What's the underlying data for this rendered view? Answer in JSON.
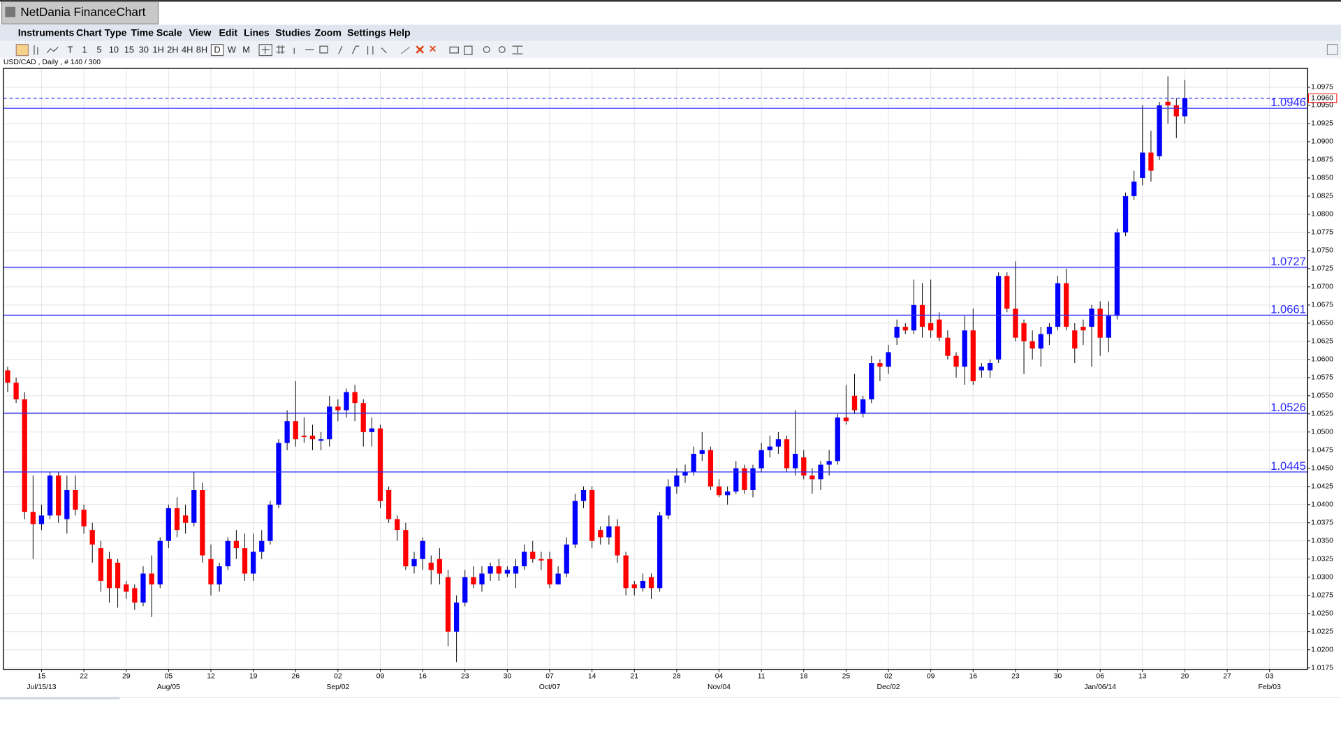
{
  "window_title": "NetDania FinanceChart",
  "menu": [
    "Instruments",
    "Chart Type",
    "Time Scale",
    "View",
    "Edit",
    "Lines",
    "Studies",
    "Zoom",
    "Settings",
    "Help"
  ],
  "toolbar": {
    "timeframes": [
      "T",
      "1",
      "5",
      "10",
      "15",
      "30",
      "1H",
      "2H",
      "4H",
      "8H",
      "D",
      "W",
      "M"
    ],
    "selected": "D"
  },
  "chart_data": {
    "type": "candlestick",
    "subtitle": "USD/CAD , Daily , # 140 / 300",
    "up_color": "#0000ff",
    "down_color": "#ff0000",
    "grid": true,
    "x": [
      "2013-07-09",
      "2013-07-10",
      "2013-07-11",
      "2013-07-12",
      "2013-07-15",
      "2013-07-16",
      "2013-07-17",
      "2013-07-18",
      "2013-07-19",
      "2013-07-22",
      "2013-07-23",
      "2013-07-24",
      "2013-07-25",
      "2013-07-26",
      "2013-07-29",
      "2013-07-30",
      "2013-07-31",
      "2013-08-01",
      "2013-08-02",
      "2013-08-05",
      "2013-08-06",
      "2013-08-07",
      "2013-08-08",
      "2013-08-09",
      "2013-08-12",
      "2013-08-13",
      "2013-08-14",
      "2013-08-15",
      "2013-08-16",
      "2013-08-19",
      "2013-08-20",
      "2013-08-21",
      "2013-08-22",
      "2013-08-23",
      "2013-08-26",
      "2013-08-27",
      "2013-08-28",
      "2013-08-29",
      "2013-08-30",
      "2013-09-02",
      "2013-09-03",
      "2013-09-04",
      "2013-09-05",
      "2013-09-06",
      "2013-09-09",
      "2013-09-10",
      "2013-09-11",
      "2013-09-12",
      "2013-09-13",
      "2013-09-16",
      "2013-09-17",
      "2013-09-18",
      "2013-09-19",
      "2013-09-20",
      "2013-09-23",
      "2013-09-24",
      "2013-09-25",
      "2013-09-26",
      "2013-09-27",
      "2013-09-30",
      "2013-10-01",
      "2013-10-02",
      "2013-10-03",
      "2013-10-04",
      "2013-10-07",
      "2013-10-08",
      "2013-10-09",
      "2013-10-10",
      "2013-10-11",
      "2013-10-14",
      "2013-10-15",
      "2013-10-16",
      "2013-10-17",
      "2013-10-18",
      "2013-10-21",
      "2013-10-22",
      "2013-10-23",
      "2013-10-24",
      "2013-10-25",
      "2013-10-28",
      "2013-10-29",
      "2013-10-30",
      "2013-10-31",
      "2013-11-01",
      "2013-11-04",
      "2013-11-05",
      "2013-11-06",
      "2013-11-07",
      "2013-11-08",
      "2013-11-11",
      "2013-11-12",
      "2013-11-13",
      "2013-11-14",
      "2013-11-15",
      "2013-11-18",
      "2013-11-19",
      "2013-11-20",
      "2013-11-21",
      "2013-11-22",
      "2013-11-25",
      "2013-11-26",
      "2013-11-27",
      "2013-11-28",
      "2013-11-29",
      "2013-12-02",
      "2013-12-03",
      "2013-12-04",
      "2013-12-05",
      "2013-12-06",
      "2013-12-09",
      "2013-12-10",
      "2013-12-11",
      "2013-12-12",
      "2013-12-13",
      "2013-12-16",
      "2013-12-17",
      "2013-12-18",
      "2013-12-19",
      "2013-12-20",
      "2013-12-23",
      "2013-12-24",
      "2013-12-25",
      "2013-12-26",
      "2013-12-27",
      "2013-12-30",
      "2013-12-31",
      "2014-01-01",
      "2014-01-02",
      "2014-01-03",
      "2014-01-06",
      "2014-01-07",
      "2014-01-08",
      "2014-01-09",
      "2014-01-10",
      "2014-01-13",
      "2014-01-14",
      "2014-01-15",
      "2014-01-16",
      "2014-01-17",
      "2014-01-20"
    ],
    "open": [
      1.0585,
      1.0568,
      1.0545,
      1.039,
      1.0373,
      1.0385,
      1.044,
      1.038,
      1.042,
      1.0393,
      1.0365,
      1.034,
      1.0325,
      1.032,
      1.029,
      1.0285,
      1.0265,
      1.0305,
      1.029,
      1.035,
      1.0395,
      1.0385,
      1.0375,
      1.042,
      1.0325,
      1.029,
      1.0315,
      1.035,
      1.034,
      1.0305,
      1.0335,
      1.035,
      1.04,
      1.0485,
      1.0515,
      1.0495,
      1.0495,
      1.0488,
      1.049,
      1.0535,
      1.053,
      1.0555,
      1.054,
      1.05,
      1.0505,
      1.042,
      1.038,
      1.0365,
      1.0315,
      1.0325,
      1.032,
      1.0325,
      1.03,
      1.0225,
      1.0265,
      1.03,
      1.029,
      1.0305,
      1.0315,
      1.0305,
      1.0305,
      1.0315,
      1.0335,
      1.0325,
      1.0325,
      1.029,
      1.0305,
      1.0345,
      1.0405,
      1.042,
      1.0365,
      1.0355,
      1.037,
      1.033,
      1.029,
      1.0285,
      1.03,
      1.0285,
      1.0385,
      1.0425,
      1.044,
      1.0445,
      1.047,
      1.0475,
      1.0425,
      1.0413,
      1.0418,
      1.045,
      1.042,
      1.045,
      1.0475,
      1.048,
      1.049,
      1.045,
      1.0465,
      1.044,
      1.0435,
      1.0455,
      1.046,
      1.052,
      1.055,
      1.0525,
      1.0545,
      1.0595,
      1.059,
      1.063,
      1.0645,
      1.064,
      1.0675,
      1.065,
      1.0655,
      1.063,
      1.0605,
      1.059,
      1.064,
      1.0585,
      1.0585,
      1.06,
      1.0715,
      1.067,
      1.065,
      1.0625,
      1.0615,
      1.0635,
      1.0645,
      1.0705,
      1.064,
      1.0645,
      1.0645,
      1.067,
      1.063,
      1.066,
      1.0775,
      1.0825,
      1.085,
      1.0885,
      1.088,
      1.0955,
      1.095,
      1.0935
    ],
    "high": [
      1.059,
      1.0575,
      1.0555,
      1.044,
      1.04,
      1.0445,
      1.0445,
      1.044,
      1.044,
      1.04,
      1.0375,
      1.035,
      1.0335,
      1.0325,
      1.0295,
      1.029,
      1.0315,
      1.033,
      1.0355,
      1.04,
      1.041,
      1.04,
      1.0445,
      1.043,
      1.0345,
      1.032,
      1.0355,
      1.0365,
      1.036,
      1.036,
      1.0365,
      1.0405,
      1.049,
      1.053,
      1.057,
      1.052,
      1.051,
      1.05,
      1.055,
      1.0545,
      1.056,
      1.0565,
      1.0545,
      1.052,
      1.051,
      1.0425,
      1.0385,
      1.0375,
      1.0335,
      1.0355,
      1.033,
      1.034,
      1.031,
      1.0275,
      1.031,
      1.0315,
      1.0315,
      1.032,
      1.0325,
      1.0315,
      1.0325,
      1.0345,
      1.035,
      1.0335,
      1.0335,
      1.0315,
      1.0355,
      1.0415,
      1.0425,
      1.0425,
      1.037,
      1.0385,
      1.038,
      1.0335,
      1.0295,
      1.0305,
      1.0305,
      1.039,
      1.0435,
      1.045,
      1.0455,
      1.048,
      1.05,
      1.048,
      1.0435,
      1.0425,
      1.046,
      1.0455,
      1.0455,
      1.0485,
      1.0495,
      1.05,
      1.0495,
      1.053,
      1.0475,
      1.045,
      1.046,
      1.0475,
      1.0525,
      1.0565,
      1.058,
      1.055,
      1.0605,
      1.06,
      1.062,
      1.0655,
      1.065,
      1.071,
      1.0705,
      1.071,
      1.0665,
      1.064,
      1.061,
      1.066,
      1.067,
      1.0595,
      1.06,
      1.072,
      1.072,
      1.0735,
      1.0655,
      1.064,
      1.0645,
      1.065,
      1.0715,
      1.0725,
      1.065,
      1.0655,
      1.0675,
      1.068,
      1.068,
      1.078,
      1.083,
      1.086,
      1.095,
      1.0915,
      1.0955,
      1.099,
      1.096,
      1.0985
    ],
    "low": [
      1.0555,
      1.054,
      1.038,
      1.0325,
      1.0365,
      1.038,
      1.0375,
      1.036,
      1.0385,
      1.036,
      1.032,
      1.028,
      1.0265,
      1.0258,
      1.027,
      1.0255,
      1.026,
      1.0245,
      1.0285,
      1.034,
      1.0355,
      1.036,
      1.037,
      1.032,
      1.0275,
      1.028,
      1.031,
      1.0325,
      1.0295,
      1.0295,
      1.0325,
      1.0345,
      1.0395,
      1.0475,
      1.048,
      1.0485,
      1.0475,
      1.0475,
      1.048,
      1.0515,
      1.052,
      1.0515,
      1.048,
      1.048,
      1.0395,
      1.0375,
      1.035,
      1.031,
      1.0305,
      1.031,
      1.029,
      1.029,
      1.0205,
      1.0183,
      1.026,
      1.0285,
      1.028,
      1.0295,
      1.0295,
      1.03,
      1.0285,
      1.031,
      1.032,
      1.031,
      1.0285,
      1.029,
      1.03,
      1.034,
      1.0395,
      1.034,
      1.0345,
      1.0345,
      1.032,
      1.0275,
      1.0275,
      1.028,
      1.027,
      1.028,
      1.038,
      1.0415,
      1.043,
      1.044,
      1.046,
      1.042,
      1.041,
      1.04,
      1.0415,
      1.0415,
      1.041,
      1.0445,
      1.0465,
      1.047,
      1.0445,
      1.044,
      1.0435,
      1.0415,
      1.042,
      1.044,
      1.0455,
      1.051,
      1.0525,
      1.052,
      1.054,
      1.057,
      1.058,
      1.062,
      1.0635,
      1.0635,
      1.063,
      1.063,
      1.0625,
      1.06,
      1.0575,
      1.0565,
      1.0565,
      1.0575,
      1.0575,
      1.0595,
      1.0665,
      1.0625,
      1.058,
      1.06,
      1.059,
      1.062,
      1.064,
      1.064,
      1.0595,
      1.062,
      1.059,
      1.0605,
      1.061,
      1.0655,
      1.077,
      1.082,
      1.084,
      1.0845,
      1.0875,
      1.0925,
      1.0905,
      1.0925
    ],
    "close": [
      1.0568,
      1.0545,
      1.039,
      1.0373,
      1.0385,
      1.044,
      1.0385,
      1.042,
      1.0393,
      1.037,
      1.0345,
      1.0295,
      1.0285,
      1.0285,
      1.028,
      1.0265,
      1.0305,
      1.029,
      1.035,
      1.0395,
      1.0365,
      1.0375,
      1.042,
      1.033,
      1.029,
      1.0315,
      1.035,
      1.034,
      1.0305,
      1.0335,
      1.035,
      1.04,
      1.0485,
      1.0515,
      1.049,
      1.0493,
      1.049,
      1.049,
      1.0535,
      1.053,
      1.0555,
      1.054,
      1.05,
      1.0505,
      1.0405,
      1.038,
      1.0365,
      1.0315,
      1.0325,
      1.035,
      1.031,
      1.0305,
      1.0225,
      1.0265,
      1.03,
      1.029,
      1.0305,
      1.0315,
      1.0305,
      1.031,
      1.0315,
      1.0335,
      1.0325,
      1.0323,
      1.029,
      1.0305,
      1.0345,
      1.0405,
      1.042,
      1.035,
      1.0355,
      1.037,
      1.033,
      1.0285,
      1.0285,
      1.0295,
      1.0285,
      1.0385,
      1.0425,
      1.044,
      1.0445,
      1.047,
      1.0475,
      1.0425,
      1.0413,
      1.0418,
      1.045,
      1.042,
      1.045,
      1.0475,
      1.048,
      1.049,
      1.045,
      1.047,
      1.044,
      1.0435,
      1.0455,
      1.046,
      1.052,
      1.0515,
      1.053,
      1.0545,
      1.0595,
      1.059,
      1.061,
      1.0645,
      1.064,
      1.0675,
      1.0645,
      1.064,
      1.063,
      1.0605,
      1.059,
      1.064,
      1.057,
      1.059,
      1.0595,
      1.0715,
      1.067,
      1.063,
      1.0625,
      1.0615,
      1.0635,
      1.0645,
      1.0705,
      1.0645,
      1.0615,
      1.064,
      1.067,
      1.063,
      1.066,
      1.0775,
      1.0825,
      1.0845,
      1.0885,
      1.086,
      1.095,
      1.095,
      1.0935,
      1.096
    ],
    "xlim": [
      "2013-07-09",
      "2014-02-07"
    ],
    "xticks": [
      {
        "value": "2013-07-15",
        "label": "15"
      },
      {
        "value": "2013-07-22",
        "label": "22"
      },
      {
        "value": "2013-07-29",
        "label": "29"
      },
      {
        "value": "2013-08-05",
        "label": "05"
      },
      {
        "value": "2013-08-12",
        "label": "12"
      },
      {
        "value": "2013-08-19",
        "label": "19"
      },
      {
        "value": "2013-08-26",
        "label": "26"
      },
      {
        "value": "2013-09-02",
        "label": "02"
      },
      {
        "value": "2013-09-09",
        "label": "09"
      },
      {
        "value": "2013-09-16",
        "label": "16"
      },
      {
        "value": "2013-09-23",
        "label": "23"
      },
      {
        "value": "2013-09-30",
        "label": "30"
      },
      {
        "value": "2013-10-07",
        "label": "07"
      },
      {
        "value": "2013-10-14",
        "label": "14"
      },
      {
        "value": "2013-10-21",
        "label": "21"
      },
      {
        "value": "2013-10-28",
        "label": "28"
      },
      {
        "value": "2013-11-04",
        "label": "04"
      },
      {
        "value": "2013-11-11",
        "label": "11"
      },
      {
        "value": "2013-11-18",
        "label": "18"
      },
      {
        "value": "2013-11-25",
        "label": "25"
      },
      {
        "value": "2013-12-02",
        "label": "02"
      },
      {
        "value": "2013-12-09",
        "label": "09"
      },
      {
        "value": "2013-12-16",
        "label": "16"
      },
      {
        "value": "2013-12-23",
        "label": "23"
      },
      {
        "value": "2013-12-30",
        "label": "30"
      },
      {
        "value": "2014-01-06",
        "label": "06"
      },
      {
        "value": "2014-01-13",
        "label": "13"
      },
      {
        "value": "2014-01-20",
        "label": "20"
      },
      {
        "value": "2014-01-27",
        "label": "27"
      },
      {
        "value": "2014-02-03",
        "label": "03"
      }
    ],
    "xmajor_ticks": [
      {
        "value": "2013-07-15",
        "label": "Jul/15/13"
      },
      {
        "value": "2013-08-05",
        "label": "Aug/05"
      },
      {
        "value": "2013-09-02",
        "label": "Sep/02"
      },
      {
        "value": "2013-10-07",
        "label": "Oct/07"
      },
      {
        "value": "2013-11-04",
        "label": "Nov/04"
      },
      {
        "value": "2013-12-02",
        "label": "Dec/02"
      },
      {
        "value": "2014-01-06",
        "label": "Jan/06/14"
      },
      {
        "value": "2014-02-03",
        "label": "Feb/03"
      }
    ],
    "ylim": [
      1.0173,
      1.1001
    ],
    "yticks": [
      1.0175,
      {
        "value": 1.02,
        "label": "1.0200"
      },
      1.0225,
      {
        "value": 1.025,
        "label": "1.0250"
      },
      1.0275,
      {
        "value": 1.03,
        "label": "1.0300"
      },
      1.0325,
      {
        "value": 1.035,
        "label": "1.0350"
      },
      1.0375,
      {
        "value": 1.04,
        "label": "1.0400"
      },
      1.0425,
      {
        "value": 1.045,
        "label": "1.0450"
      },
      1.0475,
      {
        "value": 1.05,
        "label": "1.0500"
      },
      1.0525,
      {
        "value": 1.055,
        "label": "1.0550"
      },
      1.0575,
      {
        "value": 1.06,
        "label": "1.0600"
      },
      1.0625,
      {
        "value": 1.065,
        "label": "1.0650"
      },
      1.0675,
      {
        "value": 1.07,
        "label": "1.0700"
      },
      1.0725,
      {
        "value": 1.075,
        "label": "1.0750"
      },
      1.0775,
      {
        "value": 1.08,
        "label": "1.0800"
      },
      1.0825,
      {
        "value": 1.085,
        "label": "1.0850"
      },
      1.0875,
      {
        "value": 1.09,
        "label": "1.0900"
      },
      1.0925,
      {
        "value": 1.095,
        "label": "1.0950"
      },
      1.0975
    ],
    "hlines": [
      1.0946,
      1.0727,
      1.0661,
      1.0526,
      1.0445
    ],
    "hline_color": "#2a2aff",
    "last_price": {
      "value": 1.096,
      "label": "1.0960"
    }
  }
}
